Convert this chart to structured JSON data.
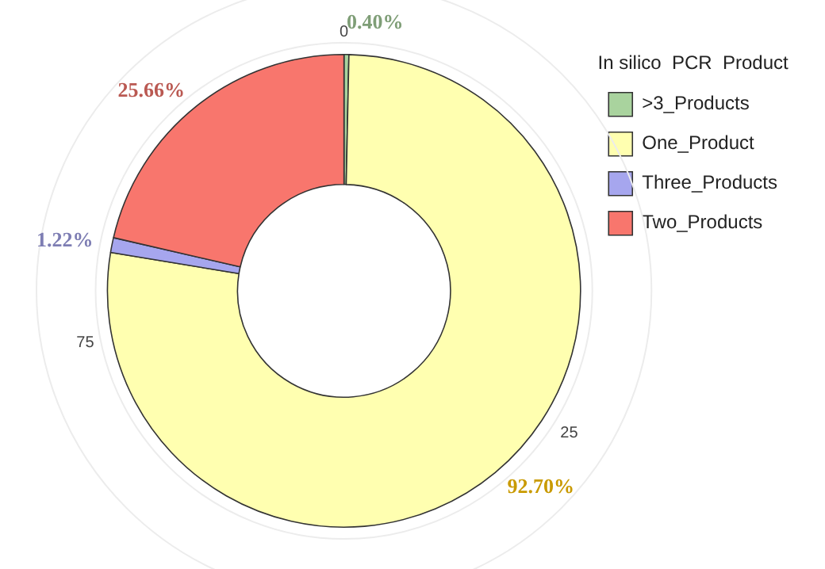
{
  "chart_data": {
    "type": "donut",
    "legend_title": "In silico  PCR  Product",
    "categories": [
      ">3_Products",
      "One_Product",
      "Three_Products",
      "Two_Products"
    ],
    "values": [
      0.4,
      92.7,
      1.22,
      25.66
    ],
    "value_labels": [
      "0.40%",
      "92.70%",
      "1.22%",
      "25.66%"
    ],
    "colors": [
      "#a9d39e",
      "#ffffb0",
      "#a6a6ee",
      "#f8766d"
    ],
    "annotations": [
      "0",
      "75",
      "25"
    ],
    "legend": "top right"
  }
}
